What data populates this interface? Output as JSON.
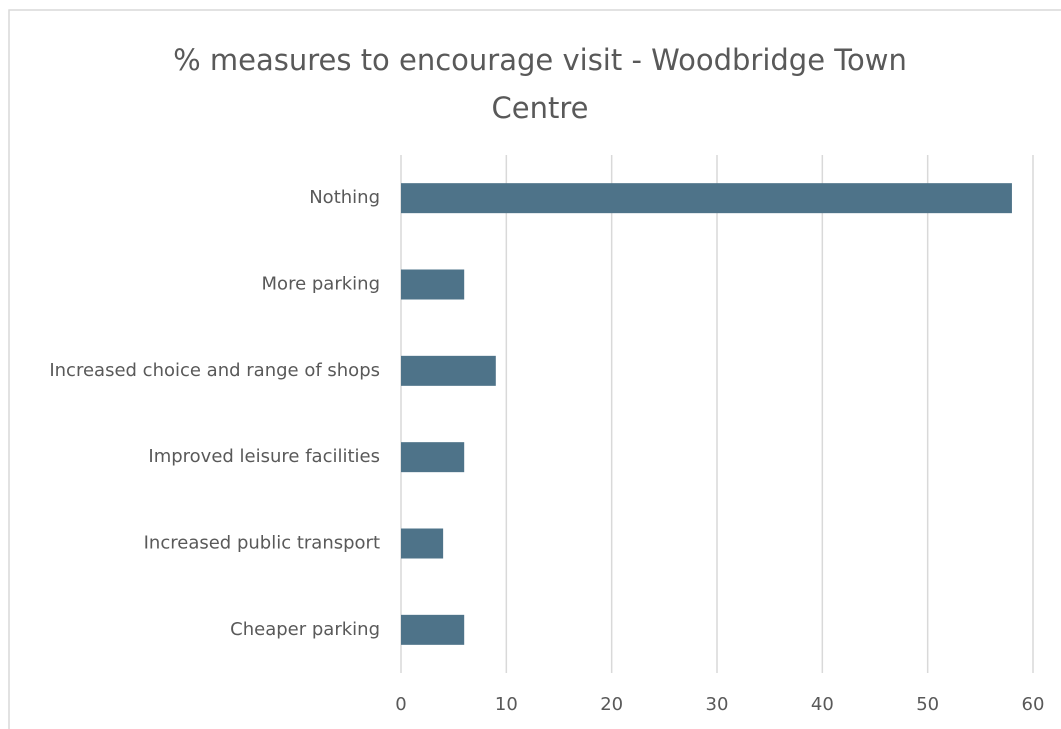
{
  "chart_data": {
    "type": "bar",
    "orientation": "horizontal",
    "title": "% measures to encourage visit - Woodbridge Town Centre",
    "categories": [
      "Nothing",
      "More parking",
      "Increased choice and range of shops",
      "Improved leisure facilities",
      "Increased public transport",
      "Cheaper parking"
    ],
    "values": [
      58,
      6,
      9,
      6,
      4,
      6
    ],
    "color": "#4e7389",
    "xlim": [
      0,
      60
    ],
    "xticks": [
      0,
      10,
      20,
      30,
      40,
      50,
      60
    ],
    "grid": true
  }
}
